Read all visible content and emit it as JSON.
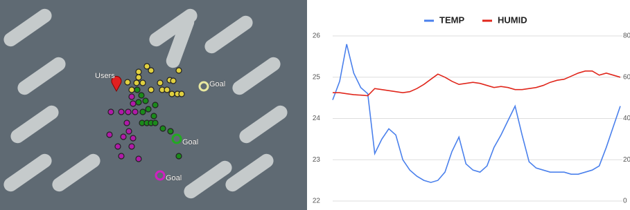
{
  "map": {
    "users_label": "Users",
    "goal_labels": [
      "Goal",
      "Goal",
      "Goal"
    ]
  },
  "chart_data": {
    "type": "line",
    "legend": "top",
    "grid": true,
    "categories": [
      null,
      null,
      null,
      null,
      null,
      null,
      null,
      null,
      null,
      null,
      null,
      null,
      null,
      null,
      null,
      null,
      null,
      null,
      null,
      null,
      null,
      null,
      null,
      null,
      null,
      null,
      null,
      null,
      null,
      null,
      null,
      null,
      null,
      null,
      null,
      null,
      null,
      null,
      null,
      null,
      null,
      null
    ],
    "ylim": [
      22,
      26
    ],
    "yticks": [
      22,
      23,
      24,
      25,
      26
    ],
    "y2lim": [
      0,
      80
    ],
    "y2ticks": [
      0,
      20,
      40,
      60,
      80
    ],
    "series": [
      {
        "name": "TEMP",
        "color": "#4a80ec",
        "values": [
          24.45,
          24.9,
          25.8,
          25.1,
          24.75,
          24.6,
          23.15,
          23.5,
          23.75,
          23.6,
          23.0,
          22.75,
          22.6,
          22.5,
          22.45,
          22.5,
          22.7,
          23.2,
          23.55,
          22.9,
          22.75,
          22.7,
          22.85,
          23.3,
          23.6,
          23.95,
          24.3,
          23.6,
          22.95,
          22.8,
          22.75,
          22.7,
          22.7,
          22.7,
          22.65,
          22.65,
          22.7,
          22.75,
          22.85,
          23.3,
          23.8,
          24.3
        ]
      },
      {
        "name": "HUMID",
        "color": "#e0261b",
        "axis": "y2",
        "values": [
          52.5,
          52.5,
          52,
          51.5,
          51.3,
          51,
          54.5,
          54,
          53.5,
          53,
          52.5,
          53,
          54.5,
          56.5,
          59,
          61.5,
          60,
          58,
          56.5,
          57,
          57.5,
          57,
          56,
          55,
          55.5,
          55,
          54,
          54,
          54.5,
          55,
          56,
          57.5,
          58.5,
          59,
          60.5,
          62,
          63,
          63,
          61,
          62,
          61,
          60
        ]
      }
    ]
  }
}
